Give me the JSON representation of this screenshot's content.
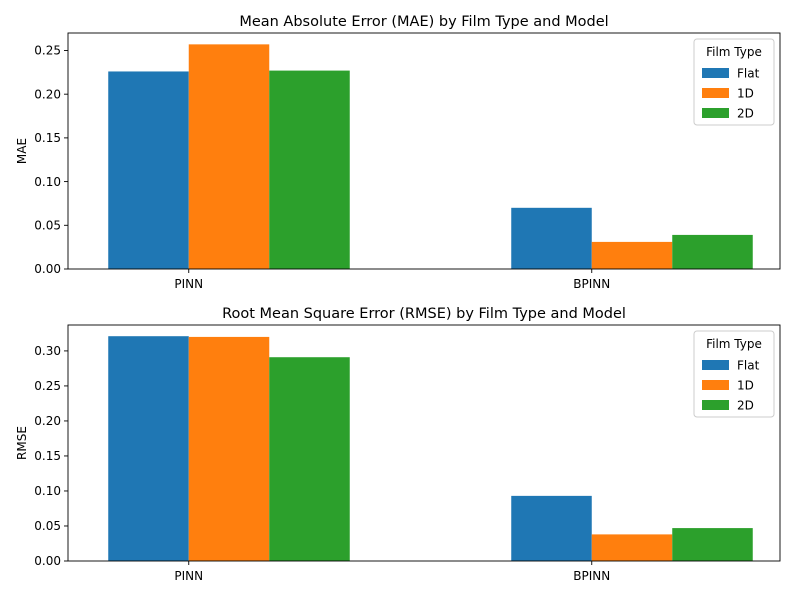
{
  "chart_data": [
    {
      "type": "bar",
      "title": "Mean Absolute Error (MAE) by Film Type and Model",
      "xlabel": "",
      "ylabel": "MAE",
      "categories": [
        "PINN",
        "BPINN"
      ],
      "series": [
        {
          "name": "Flat",
          "values": [
            0.226,
            0.07
          ]
        },
        {
          "name": "1D",
          "values": [
            0.257,
            0.031
          ]
        },
        {
          "name": "2D",
          "values": [
            0.227,
            0.039
          ]
        }
      ],
      "ylim": [
        0,
        0.27
      ],
      "yticks": [
        0.0,
        0.05,
        0.1,
        0.15,
        0.2,
        0.25
      ],
      "ytick_labels": [
        "0.00",
        "0.05",
        "0.10",
        "0.15",
        "0.20",
        "0.25"
      ],
      "legend_title": "Film Type",
      "legend_position": "top-right",
      "grid": false
    },
    {
      "type": "bar",
      "title": "Root Mean Square Error (RMSE) by Film Type and Model",
      "xlabel": "",
      "ylabel": "RMSE",
      "categories": [
        "PINN",
        "BPINN"
      ],
      "series": [
        {
          "name": "Flat",
          "values": [
            0.321,
            0.093
          ]
        },
        {
          "name": "1D",
          "values": [
            0.32,
            0.038
          ]
        },
        {
          "name": "2D",
          "values": [
            0.291,
            0.047
          ]
        }
      ],
      "ylim": [
        0,
        0.337
      ],
      "yticks": [
        0.0,
        0.05,
        0.1,
        0.15,
        0.2,
        0.25,
        0.3
      ],
      "ytick_labels": [
        "0.00",
        "0.05",
        "0.10",
        "0.15",
        "0.20",
        "0.25",
        "0.30"
      ],
      "legend_title": "Film Type",
      "legend_position": "top-right",
      "grid": false
    }
  ],
  "colors": {
    "Flat": "#1f77b4",
    "1D": "#ff7f0e",
    "2D": "#2ca02c"
  }
}
